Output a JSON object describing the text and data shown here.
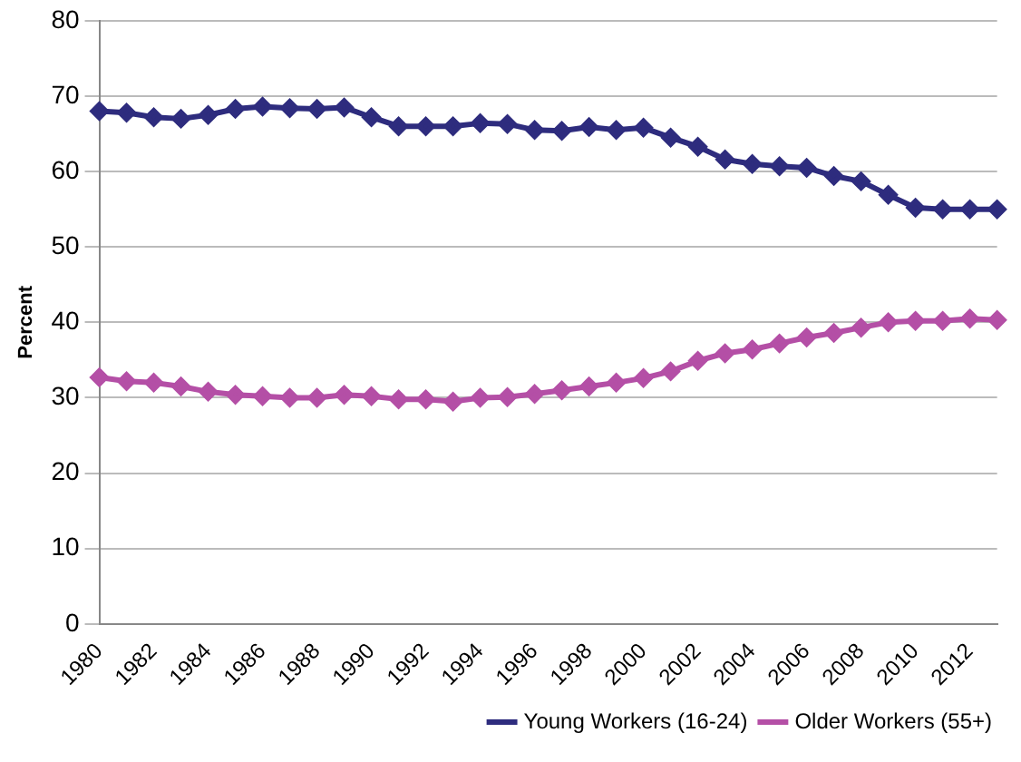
{
  "chart_data": {
    "type": "line",
    "ylabel": "Percent",
    "categories": [
      "1980",
      null,
      "1982",
      null,
      "1984",
      null,
      "1986",
      null,
      "1988",
      null,
      "1990",
      null,
      "1992",
      null,
      "1994",
      null,
      "1996",
      null,
      "1998",
      null,
      "2000",
      null,
      "2002",
      null,
      "2004",
      null,
      "2006",
      null,
      "2008",
      null,
      "2010",
      null,
      "2012",
      null
    ],
    "series": [
      {
        "name": "Young Workers (16-24)",
        "color": "#2e2c7e",
        "values": [
          68,
          67.8,
          67.2,
          67,
          67.5,
          68.3,
          68.6,
          68.4,
          68.3,
          68.5,
          67.2,
          66,
          66,
          66,
          66.4,
          66.3,
          65.5,
          65.4,
          65.9,
          65.5,
          65.8,
          64.5,
          63.3,
          61.6,
          61,
          60.7,
          60.5,
          59.4,
          58.7,
          56.9,
          55.2,
          55,
          55,
          55
        ]
      },
      {
        "name": "Older Workers (55+)",
        "color": "#b44fa6",
        "values": [
          32.7,
          32.2,
          32,
          31.5,
          30.8,
          30.4,
          30.2,
          30,
          30,
          30.4,
          30.2,
          29.8,
          29.8,
          29.5,
          30,
          30.1,
          30.5,
          31,
          31.5,
          32,
          32.6,
          33.5,
          34.9,
          35.9,
          36.4,
          37.2,
          38,
          38.6,
          39.3,
          40,
          40.2,
          40.2,
          40.5,
          40.3
        ]
      }
    ],
    "ylim": [
      0,
      80
    ],
    "yticks": [
      0,
      10,
      20,
      30,
      40,
      50,
      60,
      70,
      80
    ],
    "grid": "y",
    "legend": "bottom right",
    "marker": "diamond",
    "line_style": "solid"
  }
}
